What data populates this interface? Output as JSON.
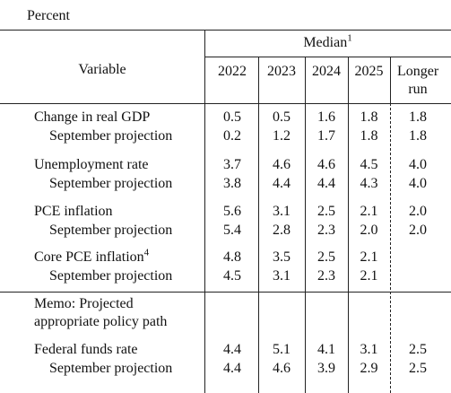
{
  "caption": "Percent",
  "header": {
    "variable": "Variable",
    "median": "Median",
    "median_note": "1",
    "columns": [
      "2022",
      "2023",
      "2024",
      "2025",
      "Longer run"
    ]
  },
  "sections": [
    {
      "rows": [
        {
          "label": "Change in real GDP",
          "values": [
            "0.5",
            "0.5",
            "1.6",
            "1.8",
            "1.8"
          ]
        },
        {
          "label": "September projection",
          "indent": true,
          "values": [
            "0.2",
            "1.2",
            "1.7",
            "1.8",
            "1.8"
          ]
        },
        {
          "label": "Unemployment rate",
          "values": [
            "3.7",
            "4.6",
            "4.6",
            "4.5",
            "4.0"
          ]
        },
        {
          "label": "September projection",
          "indent": true,
          "values": [
            "3.8",
            "4.4",
            "4.4",
            "4.3",
            "4.0"
          ]
        },
        {
          "label": "PCE inflation",
          "values": [
            "5.6",
            "3.1",
            "2.5",
            "2.1",
            "2.0"
          ]
        },
        {
          "label": "September projection",
          "indent": true,
          "values": [
            "5.4",
            "2.8",
            "2.3",
            "2.0",
            "2.0"
          ]
        },
        {
          "label": "Core PCE inflation",
          "note": "4",
          "values": [
            "4.8",
            "3.5",
            "2.5",
            "2.1",
            null
          ]
        },
        {
          "label": "September projection",
          "indent": true,
          "values": [
            "4.5",
            "3.1",
            "2.3",
            "2.1",
            null
          ]
        }
      ]
    },
    {
      "memo": [
        "Memo: Projected",
        "appropriate policy path"
      ],
      "rows": [
        {
          "label": "Federal funds rate",
          "values": [
            "4.4",
            "5.1",
            "4.1",
            "3.1",
            "2.5"
          ]
        },
        {
          "label": "September projection",
          "indent": true,
          "values": [
            "4.4",
            "4.6",
            "3.9",
            "2.9",
            "2.5"
          ]
        }
      ]
    }
  ]
}
